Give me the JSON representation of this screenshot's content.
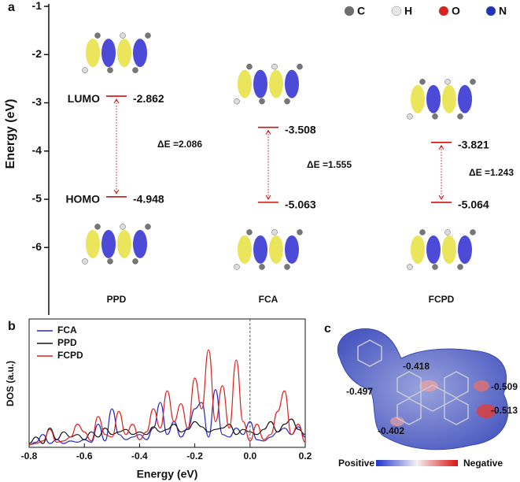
{
  "panel_labels": [
    "a",
    "b",
    "c"
  ],
  "atom_legend": [
    {
      "name": "C",
      "color": "#6e6e6e"
    },
    {
      "name": "H",
      "color": "#e6e6e6"
    },
    {
      "name": "O",
      "color": "#e02020"
    },
    {
      "name": "N",
      "color": "#2233bb"
    }
  ],
  "chart_data": [
    {
      "type": "levels",
      "ylabel": "Energy (eV)",
      "ylim": [
        -7.4,
        -0.95
      ],
      "yticks": [
        -1,
        -2,
        -3,
        -4,
        -5,
        -6
      ],
      "categories": [
        "PPD",
        "FCA",
        "FCPD"
      ],
      "series": [
        {
          "name": "LUMO",
          "color": "#cc1111",
          "values": [
            -2.862,
            -3.508,
            -3.821
          ]
        },
        {
          "name": "HOMO",
          "color": "#cc1111",
          "values": [
            -4.948,
            -5.063,
            -5.064
          ]
        }
      ],
      "gaps": {
        "values": [
          2.086,
          1.555,
          1.243
        ],
        "value_labels": [
          "ΔE =2.086",
          "ΔE =1.555",
          "ΔE =1.243"
        ]
      }
    },
    {
      "type": "line",
      "xlabel": "Energy (eV)",
      "ylabel": "DOS (a.u.)",
      "xlim": [
        -0.8,
        0.2
      ],
      "ylim": [
        0,
        1
      ],
      "xticks": [
        -0.8,
        -0.6,
        -0.4,
        -0.2,
        {
          "value": 0,
          "label": "0.0"
        },
        0.2
      ],
      "vline": 0,
      "legend": "upper left",
      "x": [
        -0.8,
        -0.775,
        -0.75,
        -0.725,
        -0.7,
        -0.675,
        -0.65,
        -0.625,
        -0.6,
        -0.575,
        -0.55,
        -0.525,
        -0.5,
        -0.475,
        -0.45,
        -0.425,
        -0.4,
        -0.375,
        -0.35,
        -0.325,
        -0.3,
        -0.275,
        -0.25,
        -0.225,
        -0.2,
        -0.175,
        -0.15,
        -0.125,
        -0.1,
        -0.075,
        -0.05,
        -0.025,
        0,
        0.025,
        0.05,
        0.075,
        0.1,
        0.125,
        0.15,
        0.175,
        0.2
      ],
      "series": [
        {
          "name": "FCA",
          "color": "#2727c8",
          "values": [
            0.02,
            0.04,
            0.1,
            0.03,
            0.06,
            0.03,
            0.05,
            0.04,
            0.06,
            0.04,
            0.18,
            0.05,
            0.3,
            0.1,
            0.06,
            0.08,
            0.1,
            0.06,
            0.15,
            0.35,
            0.1,
            0.2,
            0.08,
            0.15,
            0.3,
            0.35,
            0.08,
            0.45,
            0.1,
            0.08,
            0.15,
            0.1,
            0.2,
            0.06,
            0.05,
            0.08,
            0.12,
            0.15,
            0.1,
            0.16,
            0.08
          ]
        },
        {
          "name": "PPD",
          "color": "#111111",
          "values": [
            0.03,
            0.08,
            0.03,
            0.15,
            0.06,
            0.12,
            0.08,
            0.1,
            0.06,
            0.12,
            0.08,
            0.15,
            0.1,
            0.12,
            0.14,
            0.1,
            0.12,
            0.1,
            0.16,
            0.12,
            0.14,
            0.18,
            0.12,
            0.14,
            0.2,
            0.16,
            0.12,
            0.14,
            0.15,
            0.18,
            0.1,
            0.14,
            0.12,
            0.1,
            0.14,
            0.2,
            0.12,
            0.18,
            0.22,
            0.14,
            0.1
          ]
        },
        {
          "name": "FCPD",
          "color": "#e02020",
          "values": [
            0.02,
            0.03,
            0.05,
            0.14,
            0.04,
            0.05,
            0.08,
            0.18,
            0.12,
            0.05,
            0.24,
            0.1,
            0.08,
            0.28,
            0.1,
            0.18,
            0.06,
            0.12,
            0.3,
            0.15,
            0.44,
            0.2,
            0.34,
            0.15,
            0.54,
            0.3,
            0.76,
            0.2,
            0.48,
            0.15,
            0.68,
            0.2,
            0.05,
            0.18,
            0.06,
            0.1,
            0.28,
            0.44,
            0.1,
            0.18,
            0.04
          ]
        }
      ]
    }
  ],
  "esp_map": {
    "charges": [
      -0.418,
      -0.497,
      -0.509,
      -0.513,
      -0.402
    ],
    "scale": {
      "low": "Positive",
      "high": "Negative"
    }
  }
}
